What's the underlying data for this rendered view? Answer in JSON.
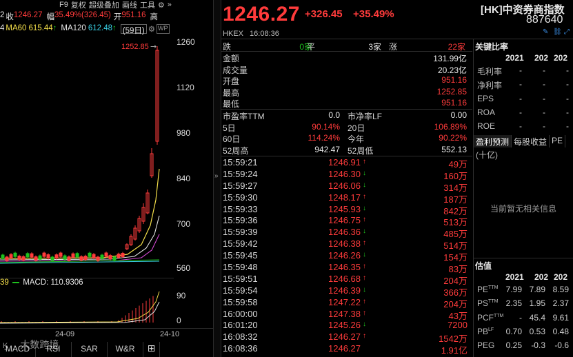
{
  "chart_panel": {
    "topbar": [
      "F9",
      "复权",
      "超级叠加",
      "画线",
      "工具"
    ],
    "quote_line": {
      "close_label": "收",
      "close": "1246.27",
      "amp_label": "幅",
      "amp": "35.49%(326.45)",
      "open_label": "开",
      "open": "951.16",
      "high_label": "高"
    },
    "ma_line": {
      "ma60_label": "MA60",
      "ma60": "615.44",
      "ma120_label": "MA120",
      "ma120": "612.48",
      "period": "(59日)"
    },
    "price_ticks": [
      "1260",
      "1120",
      "980",
      "840",
      "700",
      "560"
    ],
    "high_marker": "1252.85",
    "macd_label": "MACD:",
    "macd_value": "110.9306",
    "macd_left": "39",
    "macd_ticks": [
      "90",
      "0"
    ],
    "dates": [
      "24-09",
      "24-10"
    ],
    "indicator_tabs": [
      "MACD",
      "RSI",
      "SAR",
      "W&R"
    ],
    "watermark": "大数跨境"
  },
  "quote": {
    "price": "1246.27",
    "change": "+326.45",
    "change_pct": "+35.49%",
    "exchange": "HKEX",
    "time": "16:08:36",
    "name": "[HK]中资券商指数",
    "code": "887640",
    "breadth": {
      "down_label": "跌",
      "down": "0家",
      "flat_label": "平",
      "flat": "3家",
      "up_label": "涨",
      "up": "22家"
    },
    "stats": [
      {
        "label": "金额",
        "value": "131.99亿"
      },
      {
        "label": "成交量",
        "value": "20.23亿"
      },
      {
        "label": "开盘",
        "value": "951.16"
      },
      {
        "label": "最高",
        "value": "1252.85"
      },
      {
        "label": "最低",
        "value": "951.16"
      }
    ],
    "ratios": {
      "pe_label": "市盈率TTM",
      "pe": "0.0",
      "pb_label": "市净率LF",
      "pb": "0.00",
      "d5_label": "5日",
      "d5": "90.14%",
      "d20_label": "20日",
      "d20": "106.89%",
      "d60_label": "60日",
      "d60": "114.24%",
      "ytd_label": "今年",
      "ytd": "90.22%",
      "h52_label": "52周高",
      "h52": "942.47",
      "l52_label": "52周低",
      "l52": "552.13"
    },
    "ticks": [
      {
        "time": "15:59:21",
        "price": "1246.91",
        "dir": "up",
        "vol": "49万"
      },
      {
        "time": "15:59:24",
        "price": "1246.30",
        "dir": "down",
        "vol": "160万"
      },
      {
        "time": "15:59:27",
        "price": "1246.06",
        "dir": "down",
        "vol": "314万"
      },
      {
        "time": "15:59:30",
        "price": "1248.17",
        "dir": "up",
        "vol": "187万"
      },
      {
        "time": "15:59:33",
        "price": "1245.93",
        "dir": "down",
        "vol": "842万"
      },
      {
        "time": "15:59:36",
        "price": "1246.75",
        "dir": "up",
        "vol": "513万"
      },
      {
        "time": "15:59:39",
        "price": "1246.36",
        "dir": "down",
        "vol": "485万"
      },
      {
        "time": "15:59:42",
        "price": "1246.38",
        "dir": "up",
        "vol": "514万"
      },
      {
        "time": "15:59:45",
        "price": "1246.26",
        "dir": "down",
        "vol": "154万"
      },
      {
        "time": "15:59:48",
        "price": "1246.35",
        "dir": "up",
        "vol": "83万"
      },
      {
        "time": "15:59:51",
        "price": "1246.68",
        "dir": "up",
        "vol": "204万"
      },
      {
        "time": "15:59:54",
        "price": "1246.39",
        "dir": "down",
        "vol": "366万"
      },
      {
        "time": "15:59:58",
        "price": "1247.22",
        "dir": "up",
        "vol": "204万"
      },
      {
        "time": "16:00:00",
        "price": "1247.38",
        "dir": "up",
        "vol": "43万"
      },
      {
        "time": "16:01:20",
        "price": "1245.26",
        "dir": "down",
        "vol": "7200"
      },
      {
        "time": "16:08:32",
        "price": "1246.27",
        "dir": "up",
        "vol": "1542万"
      },
      {
        "time": "16:08:36",
        "price": "1246.27",
        "dir": "",
        "vol": "1.91亿"
      }
    ]
  },
  "fundamentals": {
    "key_title": "关键比率",
    "key_years": [
      "2021",
      "202",
      "202"
    ],
    "key_rows": [
      {
        "label": "毛利率",
        "v": [
          "-",
          "-",
          "-"
        ]
      },
      {
        "label": "净利率",
        "v": [
          "-",
          "-",
          "-"
        ]
      },
      {
        "label": "EPS",
        "v": [
          "-",
          "-",
          "-"
        ]
      },
      {
        "label": "ROA",
        "v": [
          "-",
          "-",
          "-"
        ]
      },
      {
        "label": "ROE",
        "v": [
          "-",
          "-",
          "-"
        ]
      }
    ],
    "sub_tabs": [
      "盈利预测",
      "每股收益",
      "PE"
    ],
    "unit": "(十亿)",
    "no_info": "当前暂无相关信息",
    "val_title": "估值",
    "val_years": [
      "2021",
      "202",
      "202"
    ],
    "val_rows": [
      {
        "label": "PE",
        "sup": "TTM",
        "v": [
          "7.99",
          "7.89",
          "8.59"
        ]
      },
      {
        "label": "PS",
        "sup": "TTM",
        "v": [
          "2.35",
          "1.95",
          "2.37"
        ]
      },
      {
        "label": "PCF",
        "sup": "TTM",
        "v": [
          "-",
          "45.4",
          "9.61"
        ]
      },
      {
        "label": "PB",
        "sup": "LF",
        "v": [
          "0.70",
          "0.53",
          "0.48"
        ]
      },
      {
        "label": "PEG",
        "sup": "",
        "v": [
          "0.25",
          "-0.3",
          "-0.6"
        ]
      }
    ]
  },
  "colors": {
    "up": "#ff3b3b",
    "down": "#1ec11e",
    "bg": "#000000"
  }
}
